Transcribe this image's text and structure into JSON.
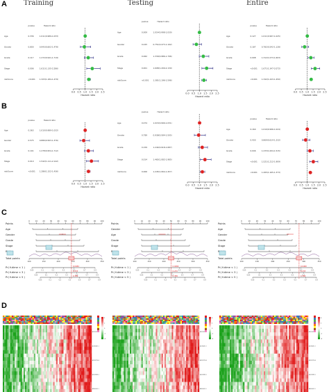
{
  "figure": {
    "panel_labels": [
      "A",
      "B",
      "C",
      "D"
    ],
    "column_titles": [
      "Training",
      "Testing",
      "Entire"
    ]
  },
  "forest_header": {
    "pvalue": "pvalue",
    "hr": "Hazard ratio",
    "xlabel": "Hazard ratio"
  },
  "forest_variables": [
    "Age",
    "Gender",
    "Grade",
    "Stage",
    "riskScore"
  ],
  "chart_data": [
    {
      "type": "scatter",
      "panel": "A",
      "column": "Training",
      "xlabel": "Hazard ratio",
      "xlim": [
        0,
        2.5
      ],
      "ref_line": 1,
      "marker_color": "#33bb44",
      "y": [
        "Age",
        "Gender",
        "Grade",
        "Stage",
        "riskScore"
      ],
      "pvalue": [
        "0.336",
        "0.800",
        "0.117",
        "0.006",
        "<0.001"
      ],
      "hr_text": [
        "1.011(0.989-1.033)",
        "0.943(0.602-1.478)",
        "1.272(0.941-1.719)",
        "1.611(1.135-2.286)",
        "1.323(1.184-1.479)"
      ],
      "hr": [
        1.01,
        0.94,
        1.27,
        1.61,
        1.32
      ],
      "lo": [
        0.99,
        0.6,
        0.94,
        1.14,
        1.18
      ],
      "hi": [
        1.03,
        1.48,
        1.72,
        2.29,
        1.48
      ]
    },
    {
      "type": "scatter",
      "panel": "A",
      "column": "Testing",
      "xlabel": "Hazard ratio",
      "xlim": [
        0,
        2.5
      ],
      "ref_line": 1,
      "marker_color": "#33bb44",
      "y": [
        "Age",
        "Gender",
        "Grade",
        "Stage",
        "riskScore"
      ],
      "pvalue": [
        "0.009",
        "0.225",
        "0.062",
        "0.001",
        "<0.001"
      ],
      "hr_text": [
        "1.014(0.998-1.030)",
        "0.751(0.473-1.192)",
        "1.330(0.986-1.796)",
        "1.608(1.209-2.139)",
        "1.381(1.196-1.596)"
      ],
      "hr": [
        1.01,
        0.75,
        1.33,
        1.61,
        1.38
      ],
      "lo": [
        1.0,
        0.47,
        0.99,
        1.21,
        1.2
      ],
      "hi": [
        1.03,
        1.19,
        1.8,
        2.14,
        1.6
      ]
    },
    {
      "type": "scatter",
      "panel": "A",
      "column": "Entire",
      "xlabel": "Hazard ratio",
      "xlim": [
        0,
        2.5
      ],
      "ref_line": 1,
      "marker_color": "#33bb44",
      "y": [
        "Age",
        "Gender",
        "Grade",
        "Stage",
        "riskScore"
      ],
      "pvalue": [
        "0.127",
        "0.187",
        "0.008",
        "<0.001",
        "<0.001"
      ],
      "hr_text": [
        "1.011(0.997-1.025)",
        "0.782(0.542-1.128)",
        "1.312(1.073-1.603)",
        "1.671(1.347-2.072)",
        "1.342(1.243-1.450)"
      ],
      "hr": [
        1.01,
        0.78,
        1.31,
        1.67,
        1.34
      ],
      "lo": [
        1.0,
        0.54,
        1.07,
        1.35,
        1.24
      ],
      "hi": [
        1.03,
        1.13,
        1.6,
        2.07,
        1.45
      ]
    },
    {
      "type": "scatter",
      "panel": "B",
      "column": "Training",
      "xlabel": "Hazard ratio",
      "xlim": [
        0,
        2.5
      ],
      "ref_line": 1,
      "marker_color": "#dd2222",
      "y": [
        "Age",
        "Gender",
        "Grade",
        "Stage",
        "riskScore"
      ],
      "pvalue": [
        "0.363",
        "0.575",
        "0.101",
        "0.010",
        "<0.001"
      ],
      "hr_text": [
        "1.010(0.989-1.032)",
        "0.880(0.563-1.376)",
        "1.278(0.954-1.712)",
        "1.542(1.111-2.142)",
        "1.286(1.152-1.436)"
      ],
      "hr": [
        1.01,
        0.88,
        1.28,
        1.54,
        1.29
      ],
      "lo": [
        0.99,
        0.56,
        0.95,
        1.11,
        1.15
      ],
      "hi": [
        1.03,
        1.38,
        1.71,
        2.14,
        1.44
      ]
    },
    {
      "type": "scatter",
      "panel": "B",
      "column": "Testing",
      "xlabel": "Hazard ratio",
      "xlim": [
        0,
        2.5
      ],
      "ref_line": 1,
      "marker_color": "#dd2222",
      "y": [
        "Age",
        "Gender",
        "Grade",
        "Stage",
        "riskScore"
      ],
      "pvalue": [
        "0.074",
        "0.789",
        "0.159",
        "0.014",
        "0.006"
      ],
      "hr_text": [
        "1.015(0.999-1.031)",
        "0.938(0.584-1.505)",
        "1.244(0.918-1.687)",
        "1.465(1.082-1.985)",
        "1.245(1.064-1.457)"
      ],
      "hr": [
        1.02,
        0.94,
        1.24,
        1.47,
        1.25
      ],
      "lo": [
        1.0,
        0.58,
        0.92,
        1.08,
        1.06
      ],
      "hi": [
        1.03,
        1.51,
        1.69,
        1.99,
        1.46
      ]
    },
    {
      "type": "scatter",
      "panel": "B",
      "column": "Entire",
      "xlabel": "Hazard ratio",
      "xlim": [
        0,
        2.5
      ],
      "ref_line": 1,
      "marker_color": "#dd2222",
      "y": [
        "Age",
        "Gender",
        "Grade",
        "Stage",
        "riskScore"
      ],
      "pvalue": [
        "0.160",
        "0.430",
        "0.046",
        "<0.001",
        "<0.001"
      ],
      "hr_text": [
        "1.010(0.996-1.024)",
        "0.869(0.614-1.232)",
        "1.233(1.004-1.515)",
        "1.521(1.212-1.909)",
        "1.265(1.165-1.373)"
      ],
      "hr": [
        1.01,
        0.87,
        1.23,
        1.52,
        1.27
      ],
      "lo": [
        1.0,
        0.61,
        1.0,
        1.21,
        1.17
      ],
      "hi": [
        1.02,
        1.23,
        1.52,
        1.91,
        1.37
      ]
    }
  ],
  "nomogram": {
    "rows": [
      "Points",
      "Age",
      "Gender",
      "Grade",
      "Stage",
      "riskScore",
      "Total points",
      "Pr( futime < 1 )",
      "Pr( futime < 3 )",
      "Pr( futime < 5 )"
    ],
    "columns": [
      {
        "labels": [
          "Points",
          "Age",
          "Gender",
          "Grade",
          "Stage",
          "Ris*",
          "Total points",
          "Pr( futime < 1 )",
          "Pr( futime < 3 )",
          "Pr( futime < 5 )"
        ]
      },
      {
        "labels": [
          "Points",
          "Gender",
          "Age",
          "Grade",
          "Stage",
          "Risk*",
          "Total points",
          "Pr( futime < 1 )",
          "Pr( futime < 3 )",
          "Pr( futime < 5 )"
        ]
      },
      {
        "labels": [
          "Points",
          "Age",
          "Gender",
          "Grade",
          "Stage",
          "Risk*",
          "Total points",
          "Pr( futime < 1 )",
          "Pr( futime < 3 )",
          "Pr( futime < 5 )"
        ]
      }
    ],
    "points_scale": [
      "0",
      "10",
      "20",
      "30",
      "40",
      "50",
      "60",
      "70",
      "80",
      "90",
      "100"
    ],
    "total_scale": [
      "100",
      "150",
      "200",
      "250",
      "300",
      "350"
    ],
    "prob_marks": [
      "0.05",
      "0.1",
      "0.2",
      "0.3",
      "0.5",
      "0.7",
      "0.9"
    ],
    "highlight_values": [
      "0.0482",
      "0.233",
      "0.389"
    ]
  },
  "heatmap": {
    "panels": [
      "Training",
      "Testing",
      "Entire"
    ],
    "track_colors": [
      "#e41a1c",
      "#377eb8",
      "#4daf4a",
      "#984ea3",
      "#ff7f00",
      "#ffff33",
      "#a65628",
      "#f781bf",
      "#999999",
      "#66c2a5"
    ],
    "low_color": "#1aa11a",
    "high_color": "#e01818",
    "mid_color": "#ffffff",
    "legend_scale": [
      "4",
      "2",
      "0",
      "-2",
      "-4"
    ],
    "row_labels": [
      "AC090971.3",
      "AL161431.1",
      "AC092718.4",
      "AC009283.1",
      "AP001619.1"
    ]
  }
}
